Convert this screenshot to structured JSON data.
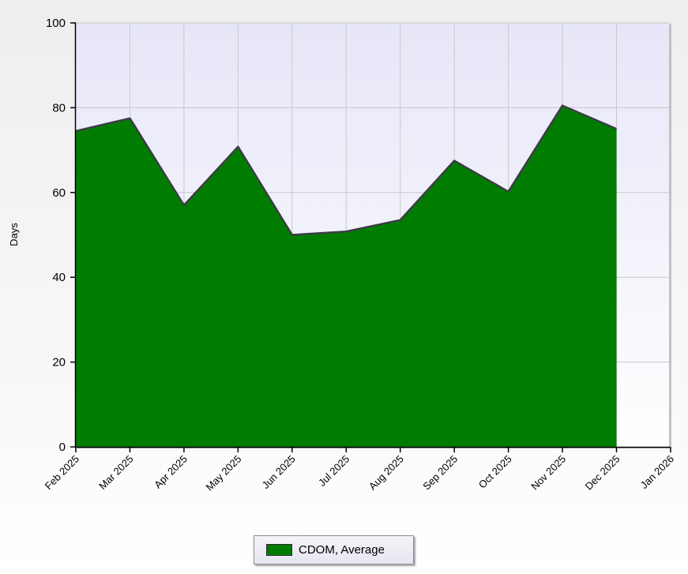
{
  "chart_data": {
    "type": "area",
    "x": [
      "Feb 2025",
      "Mar 2025",
      "Apr 2025",
      "May 2025",
      "Jun 2025",
      "Jul 2025",
      "Aug 2025",
      "Sep 2025",
      "Oct 2025",
      "Nov 2025",
      "Dec 2025",
      "Jan 2026"
    ],
    "series": [
      {
        "name": "CDOM, Average",
        "values": [
          74.5,
          77.5,
          57,
          70.8,
          50,
          50.8,
          53.5,
          67.5,
          60.2,
          80.5,
          75,
          null
        ],
        "color": "#007d00"
      }
    ],
    "ylabel": "Days",
    "xlabel": "",
    "ylim": [
      0,
      100
    ],
    "yticks": [
      0,
      20,
      40,
      60,
      80,
      100
    ],
    "grid": true,
    "legend_position": "bottom-center",
    "colors": {
      "plot_background_top": "#e6e6f8",
      "plot_background_bottom": "#ffffff",
      "gridline": "#c8c8c8",
      "area_fill": "#007d00",
      "area_outline": "#3c3c46"
    }
  }
}
